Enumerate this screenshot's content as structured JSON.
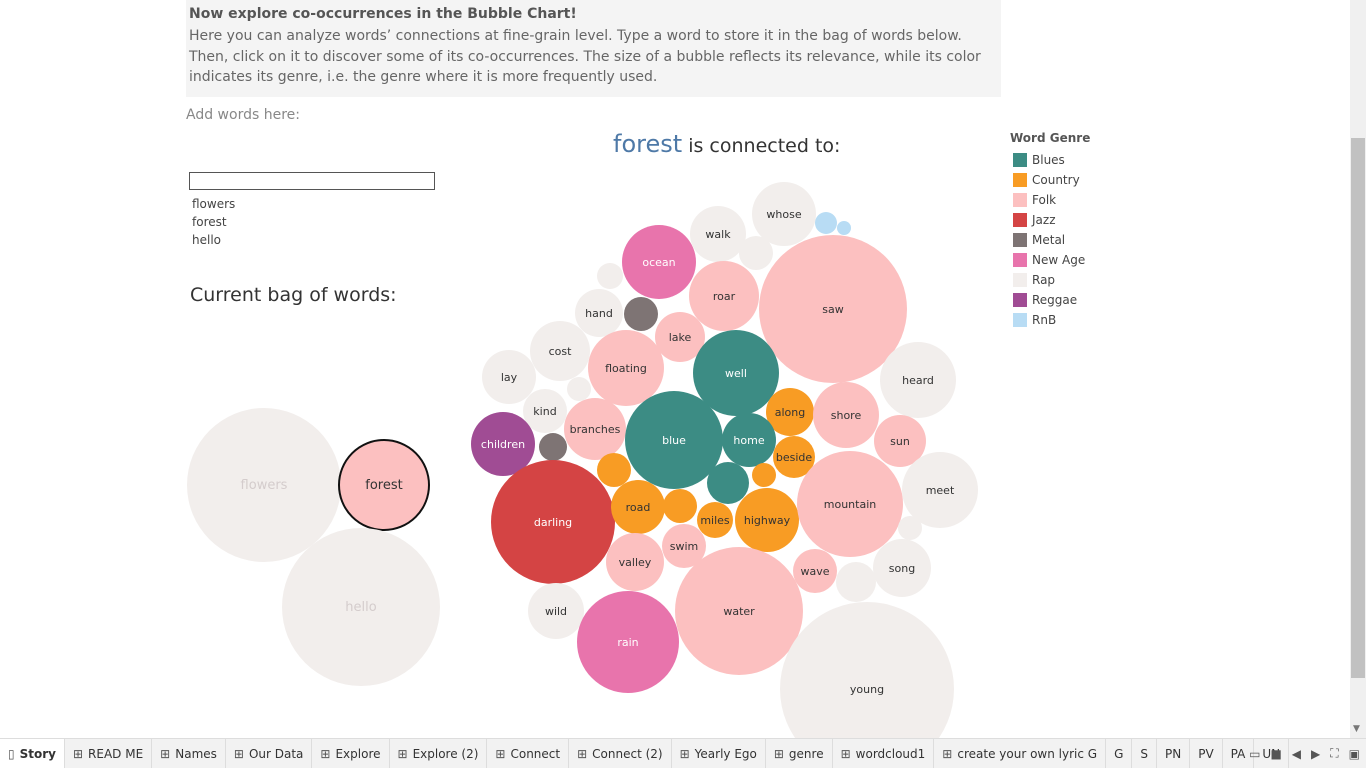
{
  "intro": {
    "heading": "Now explore co-occurrences in the Bubble Chart!",
    "line1": "Here you can analyze words’ connections at fine-grain level. Type a word to store it in the bag of words below.",
    "line2": "Then, click on it to discover some of its co-occurrences. The size of a bubble reflects its relevance, while its color",
    "line3": "indicates its genre, i.e. the genre where it is more frequently used."
  },
  "add_words_label": "Add words here:",
  "word_input": {
    "value": "",
    "placeholder": ""
  },
  "word_list": [
    "flowers",
    "forest",
    "hello"
  ],
  "bag_title": "Current bag of words:",
  "connection_title": {
    "keyword": "forest",
    "suffix": " is connected to:"
  },
  "legend": {
    "title": "Word Genre",
    "items": [
      {
        "label": "Blues",
        "color": "#3c8c84"
      },
      {
        "label": "Country",
        "color": "#f89c24"
      },
      {
        "label": "Folk",
        "color": "#fcc0c0"
      },
      {
        "label": "Jazz",
        "color": "#d44444"
      },
      {
        "label": "Metal",
        "color": "#7e7474"
      },
      {
        "label": "New Age",
        "color": "#e874ac"
      },
      {
        "label": "Rap",
        "color": "#f2eeec"
      },
      {
        "label": "Reggae",
        "color": "#a04c94"
      },
      {
        "label": "RnB",
        "color": "#b8dcf4"
      }
    ]
  },
  "bag_bubbles": [
    {
      "word": "flowers",
      "genre": "Rap",
      "selected": false
    },
    {
      "word": "forest",
      "genre": "Folk",
      "selected": true
    },
    {
      "word": "hello",
      "genre": "Rap",
      "selected": false
    }
  ],
  "connected_bubbles": [
    {
      "word": "whose",
      "genre": "Rap"
    },
    {
      "word": "walk",
      "genre": "Rap"
    },
    {
      "word": "",
      "genre": "RnB"
    },
    {
      "word": "",
      "genre": "RnB"
    },
    {
      "word": "",
      "genre": "Rap"
    },
    {
      "word": "ocean",
      "genre": "New Age"
    },
    {
      "word": "",
      "genre": "Rap"
    },
    {
      "word": "roar",
      "genre": "Folk"
    },
    {
      "word": "saw",
      "genre": "Folk"
    },
    {
      "word": "hand",
      "genre": "Rap"
    },
    {
      "word": "",
      "genre": "Metal"
    },
    {
      "word": "lake",
      "genre": "Folk"
    },
    {
      "word": "cost",
      "genre": "Rap"
    },
    {
      "word": "floating",
      "genre": "Folk"
    },
    {
      "word": "well",
      "genre": "Blues"
    },
    {
      "word": "heard",
      "genre": "Rap"
    },
    {
      "word": "lay",
      "genre": "Rap"
    },
    {
      "word": "",
      "genre": "Rap"
    },
    {
      "word": "kind",
      "genre": "Rap"
    },
    {
      "word": "along",
      "genre": "Country"
    },
    {
      "word": "shore",
      "genre": "Folk"
    },
    {
      "word": "children",
      "genre": "Reggae"
    },
    {
      "word": "branches",
      "genre": "Folk"
    },
    {
      "word": "blue",
      "genre": "Blues"
    },
    {
      "word": "home",
      "genre": "Blues"
    },
    {
      "word": "sun",
      "genre": "Folk"
    },
    {
      "word": "",
      "genre": "Metal"
    },
    {
      "word": "beside",
      "genre": "Country"
    },
    {
      "word": "meet",
      "genre": "Rap"
    },
    {
      "word": "",
      "genre": "Country"
    },
    {
      "word": "",
      "genre": "Country"
    },
    {
      "word": "",
      "genre": "Blues"
    },
    {
      "word": "darling",
      "genre": "Jazz"
    },
    {
      "word": "road",
      "genre": "Country"
    },
    {
      "word": "",
      "genre": "Country"
    },
    {
      "word": "highway",
      "genre": "Country"
    },
    {
      "word": "mountain",
      "genre": "Folk"
    },
    {
      "word": "miles",
      "genre": "Country"
    },
    {
      "word": "",
      "genre": "Rap"
    },
    {
      "word": "swim",
      "genre": "Folk"
    },
    {
      "word": "valley",
      "genre": "Folk"
    },
    {
      "word": "song",
      "genre": "Rap"
    },
    {
      "word": "wave",
      "genre": "Folk"
    },
    {
      "word": "",
      "genre": "Rap"
    },
    {
      "word": "wild",
      "genre": "Rap"
    },
    {
      "word": "water",
      "genre": "Folk"
    },
    {
      "word": "rain",
      "genre": "New Age"
    },
    {
      "word": "young",
      "genre": "Rap"
    }
  ],
  "tabs": [
    {
      "label": "Story",
      "active": true
    },
    {
      "label": "READ ME"
    },
    {
      "label": "Names"
    },
    {
      "label": "Our Data"
    },
    {
      "label": "Explore"
    },
    {
      "label": "Explore (2)"
    },
    {
      "label": "Connect"
    },
    {
      "label": "Connect (2)"
    },
    {
      "label": "Yearly Ego"
    },
    {
      "label": "genre"
    },
    {
      "label": "wordcloud1"
    },
    {
      "label": "create your own lyric G"
    },
    {
      "label": "G"
    },
    {
      "label": "S"
    },
    {
      "label": "PN"
    },
    {
      "label": "PV"
    },
    {
      "label": "PA"
    },
    {
      "label": "UN"
    }
  ]
}
